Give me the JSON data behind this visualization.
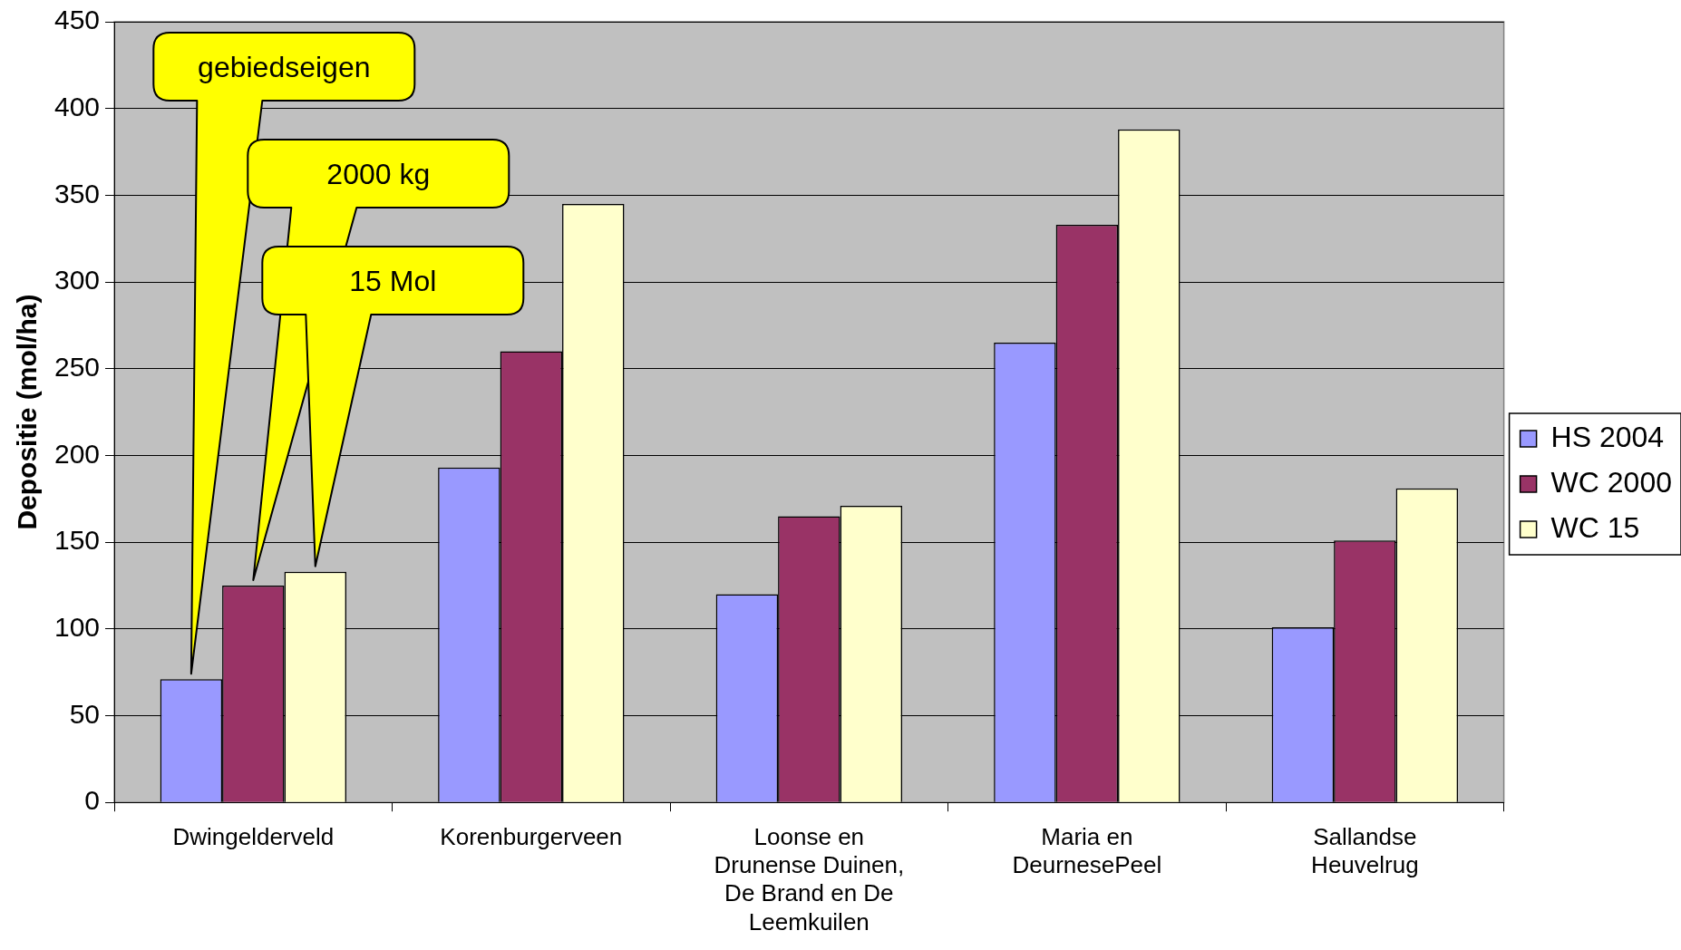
{
  "chart_data": {
    "type": "bar",
    "ylabel": "Depositie (mol/ha)",
    "categories": [
      "Dwingelderveld",
      "Korenburgerveen",
      "Loonse en Drunense Duinen, De Brand en De Leemkuilen",
      "Maria en DeurnesePeel",
      "Sallandse Heuvelrug"
    ],
    "series": [
      {
        "name": "HS 2004",
        "color": "#9999ff",
        "values": [
          71,
          193,
          120,
          265,
          101
        ]
      },
      {
        "name": "WC 2000",
        "color": "#993366",
        "values": [
          125,
          260,
          165,
          333,
          151
        ]
      },
      {
        "name": "WC 15",
        "color": "#ffffcc",
        "values": [
          133,
          345,
          171,
          388,
          181
        ]
      }
    ],
    "ylim": [
      0,
      450
    ],
    "yticks": [
      0,
      50,
      100,
      150,
      200,
      250,
      300,
      350,
      400,
      450
    ],
    "grid": "y",
    "legend": "right",
    "annotations": [
      "gebiedseigen",
      "2000 kg",
      "15 Mol"
    ]
  }
}
